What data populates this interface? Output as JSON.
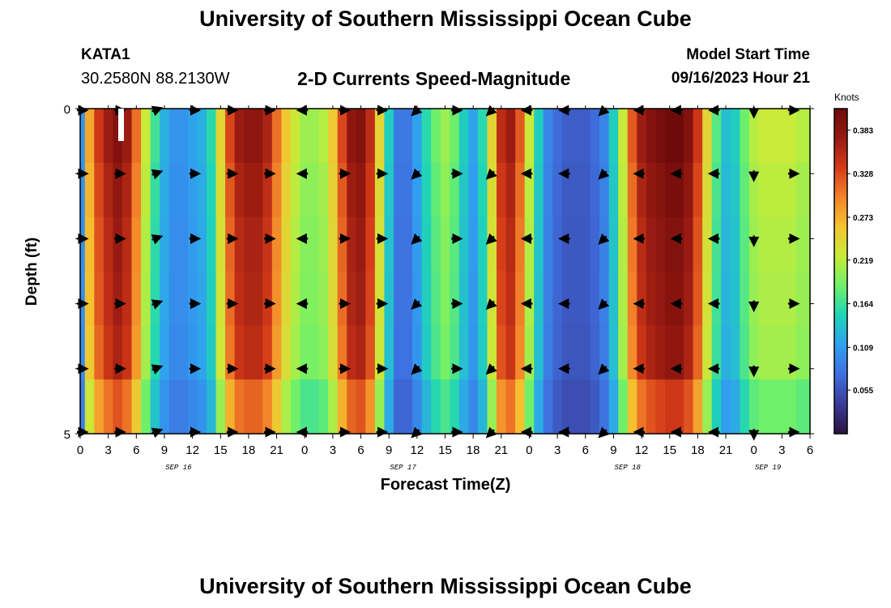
{
  "header": {
    "title": "University of Southern Mississippi Ocean Cube",
    "station": "KATA1",
    "coordinates": "30.2580N  88.2130W",
    "subtitle": "2-D Currents Speed-Magnitude",
    "model_start_label": "Model Start Time",
    "model_start_value": "09/16/2023 Hour 21"
  },
  "footer": {
    "title": "University of Southern Mississippi Ocean Cube"
  },
  "chart_data": {
    "type": "heatmap",
    "title": "2-D Currents Speed-Magnitude",
    "xlabel": "Forecast Time(Z)",
    "ylabel": "Depth (ft)",
    "y_ticks": [
      "0",
      "5"
    ],
    "ylim": [
      0,
      5
    ],
    "x_tick_labels": [
      "0",
      "3",
      "6",
      "9",
      "12",
      "15",
      "18",
      "21",
      "0",
      "3",
      "6",
      "9",
      "12",
      "15",
      "18",
      "21",
      "0",
      "3",
      "6",
      "9",
      "12",
      "15",
      "18",
      "21",
      "0",
      "3",
      "6"
    ],
    "date_labels": [
      {
        "label": "SEP 16",
        "tick_index": 3.5
      },
      {
        "label": "SEP 17",
        "tick_index": 11.5
      },
      {
        "label": "SEP 18",
        "tick_index": 19.5
      },
      {
        "label": "SEP 19",
        "tick_index": 24.5
      }
    ],
    "colorbar": {
      "units": "Knots",
      "min": 0.0,
      "max": 0.41,
      "tick_labels": [
        "0.383",
        "0.328",
        "0.273",
        "0.219",
        "0.164",
        "0.109",
        "0.055"
      ],
      "tick_values": [
        0.383,
        0.328,
        0.273,
        0.219,
        0.164,
        0.109,
        0.055
      ],
      "colormap": [
        "#2a1442",
        "#3a3a96",
        "#3f6fe0",
        "#30a0f0",
        "#1ed4b8",
        "#6ef06a",
        "#c6ec3a",
        "#f4c430",
        "#f4842a",
        "#d43a18",
        "#981a12",
        "#6e0a0a"
      ]
    },
    "forecast_hours": [
      0,
      1,
      2,
      3,
      4,
      5,
      6,
      7,
      8,
      9,
      10,
      11,
      12,
      13,
      14,
      15,
      16,
      17,
      18,
      19,
      20,
      21,
      22,
      23,
      24,
      25,
      26,
      27,
      28,
      29,
      30,
      31,
      32,
      33,
      34,
      35,
      36,
      37,
      38,
      39,
      40,
      41,
      42,
      43,
      44,
      45,
      46,
      47,
      48,
      49,
      50,
      51,
      52,
      53,
      54,
      55,
      56,
      57,
      58,
      59,
      60,
      61,
      62,
      63,
      64,
      65,
      66,
      67,
      68,
      69,
      70,
      71,
      72,
      73,
      74,
      75,
      76,
      77,
      78
    ],
    "speed_by_hour": [
      0.1,
      0.27,
      0.33,
      0.36,
      0.38,
      0.36,
      0.3,
      0.22,
      0.16,
      0.12,
      0.1,
      0.1,
      0.11,
      0.12,
      0.15,
      0.24,
      0.32,
      0.36,
      0.37,
      0.37,
      0.35,
      0.3,
      0.25,
      0.22,
      0.2,
      0.2,
      0.21,
      0.25,
      0.32,
      0.37,
      0.38,
      0.34,
      0.24,
      0.14,
      0.08,
      0.08,
      0.11,
      0.15,
      0.18,
      0.2,
      0.18,
      0.14,
      0.11,
      0.15,
      0.24,
      0.34,
      0.36,
      0.31,
      0.22,
      0.14,
      0.09,
      0.07,
      0.06,
      0.06,
      0.06,
      0.07,
      0.09,
      0.14,
      0.22,
      0.31,
      0.36,
      0.38,
      0.39,
      0.4,
      0.4,
      0.38,
      0.33,
      0.24,
      0.17,
      0.13,
      0.14,
      0.18,
      0.21,
      0.22,
      0.22,
      0.22,
      0.22,
      0.21,
      0.21
    ],
    "depth_factors": [
      1.03,
      1.0,
      0.98,
      0.97,
      0.95,
      0.85
    ],
    "arrows": {
      "hours": [
        0,
        4,
        8,
        12,
        16,
        20,
        24,
        28,
        32,
        36,
        40,
        44,
        48,
        52,
        56,
        60,
        64,
        68,
        72,
        76
      ],
      "depth_rows": [
        0,
        1,
        2,
        3,
        4,
        5
      ],
      "direction_deg_by_hour": [
        0,
        0,
        20,
        0,
        0,
        0,
        180,
        0,
        0,
        225,
        0,
        225,
        180,
        180,
        225,
        180,
        180,
        180,
        270,
        0
      ]
    }
  }
}
